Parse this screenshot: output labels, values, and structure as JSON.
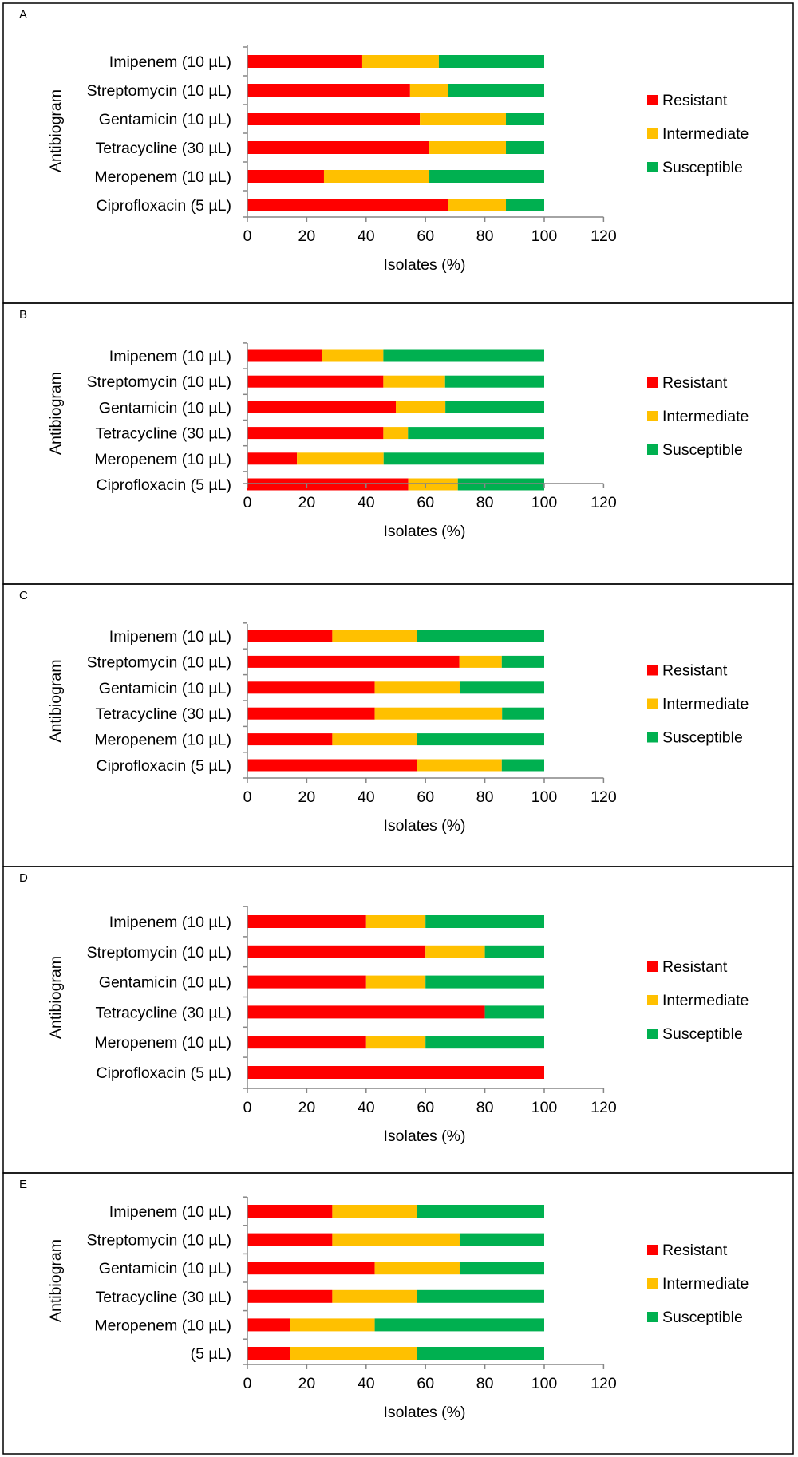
{
  "colors": {
    "Resistant": "#ff0000",
    "Intermediate": "#ffc000",
    "Susceptible": "#00b050"
  },
  "chart_data": [
    {
      "panel": "A",
      "type": "bar",
      "orientation": "horizontal",
      "stacked": true,
      "categories": [
        "Imipenem (10 µL)",
        "Streptomycin (10 µL)",
        "Gentamicin (10 µL)",
        "Tetracycline (30 µL)",
        "Meropenem (10 µL)",
        "Ciprofloxacin (5 µL)"
      ],
      "series": [
        {
          "name": "Resistant",
          "values": [
            38.7,
            54.8,
            58.1,
            61.3,
            25.8,
            67.7
          ]
        },
        {
          "name": "Intermediate",
          "values": [
            25.8,
            12.9,
            29.0,
            25.8,
            35.5,
            19.4
          ]
        },
        {
          "name": "Susceptible",
          "values": [
            35.5,
            32.3,
            12.9,
            12.9,
            38.7,
            12.9
          ]
        }
      ],
      "xlabel": "Isolates (%)",
      "ylabel": "Antibiogram",
      "xlim": [
        0,
        120
      ],
      "xticks": [
        "0",
        "20",
        "40",
        "60",
        "80",
        "100",
        "120"
      ],
      "legend": "right",
      "grid": false
    },
    {
      "panel": "B",
      "type": "bar",
      "orientation": "horizontal",
      "stacked": true,
      "categories": [
        "Imipenem (10 µL)",
        "Streptomycin (10 µL)",
        "Gentamicin (10 µL)",
        "Tetracycline (30 µL)",
        "Meropenem (10 µL)",
        "Ciprofloxacin (5 µL)"
      ],
      "series": [
        {
          "name": "Resistant",
          "values": [
            25.0,
            45.8,
            50.0,
            45.8,
            16.7,
            54.2
          ]
        },
        {
          "name": "Intermediate",
          "values": [
            20.8,
            20.8,
            16.7,
            8.3,
            29.2,
            16.7
          ]
        },
        {
          "name": "Susceptible",
          "values": [
            54.2,
            33.4,
            33.3,
            45.9,
            54.1,
            29.1
          ]
        }
      ],
      "xlabel": "Isolates (%)",
      "ylabel": "Antibiogram",
      "xlim": [
        0,
        120
      ],
      "xticks": [
        "0",
        "20",
        "40",
        "60",
        "80",
        "100",
        "120"
      ],
      "legend": "right",
      "grid": false
    },
    {
      "panel": "C",
      "type": "bar",
      "orientation": "horizontal",
      "stacked": true,
      "categories": [
        "Imipenem (10 µL)",
        "Streptomycin (10 µL)",
        "Gentamicin (10 µL)",
        "Tetracycline (30 µL)",
        "Meropenem (10 µL)",
        "Ciprofloxacin (5 µL)"
      ],
      "series": [
        {
          "name": "Resistant",
          "values": [
            28.6,
            71.4,
            42.9,
            42.9,
            28.6,
            57.1
          ]
        },
        {
          "name": "Intermediate",
          "values": [
            28.6,
            14.3,
            28.6,
            42.9,
            28.6,
            28.6
          ]
        },
        {
          "name": "Susceptible",
          "values": [
            42.8,
            14.3,
            28.5,
            14.2,
            42.8,
            14.3
          ]
        }
      ],
      "xlabel": "Isolates (%)",
      "ylabel": "Antibiogram",
      "xlim": [
        0,
        120
      ],
      "xticks": [
        "0",
        "20",
        "40",
        "60",
        "80",
        "100",
        "120"
      ],
      "legend": "right",
      "grid": false
    },
    {
      "panel": "D",
      "type": "bar",
      "orientation": "horizontal",
      "stacked": true,
      "categories": [
        "Imipenem (10 µL)",
        "Streptomycin (10 µL)",
        "Gentamicin (10 µL)",
        "Tetracycline (30 µL)",
        "Meropenem (10 µL)",
        "Ciprofloxacin (5 µL)"
      ],
      "series": [
        {
          "name": "Resistant",
          "values": [
            40,
            60,
            40,
            80,
            40,
            100
          ]
        },
        {
          "name": "Intermediate",
          "values": [
            20,
            20,
            20,
            0,
            20,
            0
          ]
        },
        {
          "name": "Susceptible",
          "values": [
            40,
            20,
            40,
            20,
            40,
            0
          ]
        }
      ],
      "xlabel": "Isolates (%)",
      "ylabel": "Antibiogram",
      "xlim": [
        0,
        120
      ],
      "xticks": [
        "0",
        "20",
        "40",
        "60",
        "80",
        "100",
        "120"
      ],
      "legend": "right",
      "grid": false
    },
    {
      "panel": "E",
      "type": "bar",
      "orientation": "horizontal",
      "stacked": true,
      "categories": [
        "Imipenem (10 µL)",
        "Streptomycin (10 µL)",
        "Gentamicin (10 µL)",
        "Tetracycline (30 µL)",
        "Meropenem (10 µL)",
        "(5 µL)"
      ],
      "series": [
        {
          "name": "Resistant",
          "values": [
            28.6,
            28.6,
            42.9,
            28.6,
            14.3,
            14.3
          ]
        },
        {
          "name": "Intermediate",
          "values": [
            28.6,
            42.9,
            28.6,
            28.6,
            28.6,
            42.9
          ]
        },
        {
          "name": "Susceptible",
          "values": [
            42.8,
            28.5,
            28.5,
            42.8,
            57.1,
            42.8
          ]
        }
      ],
      "xlabel": "Isolates (%)",
      "ylabel": "Antibiogram",
      "xlim": [
        0,
        120
      ],
      "xticks": [
        "0",
        "20",
        "40",
        "60",
        "80",
        "100",
        "120"
      ],
      "legend": "right",
      "grid": false
    }
  ]
}
